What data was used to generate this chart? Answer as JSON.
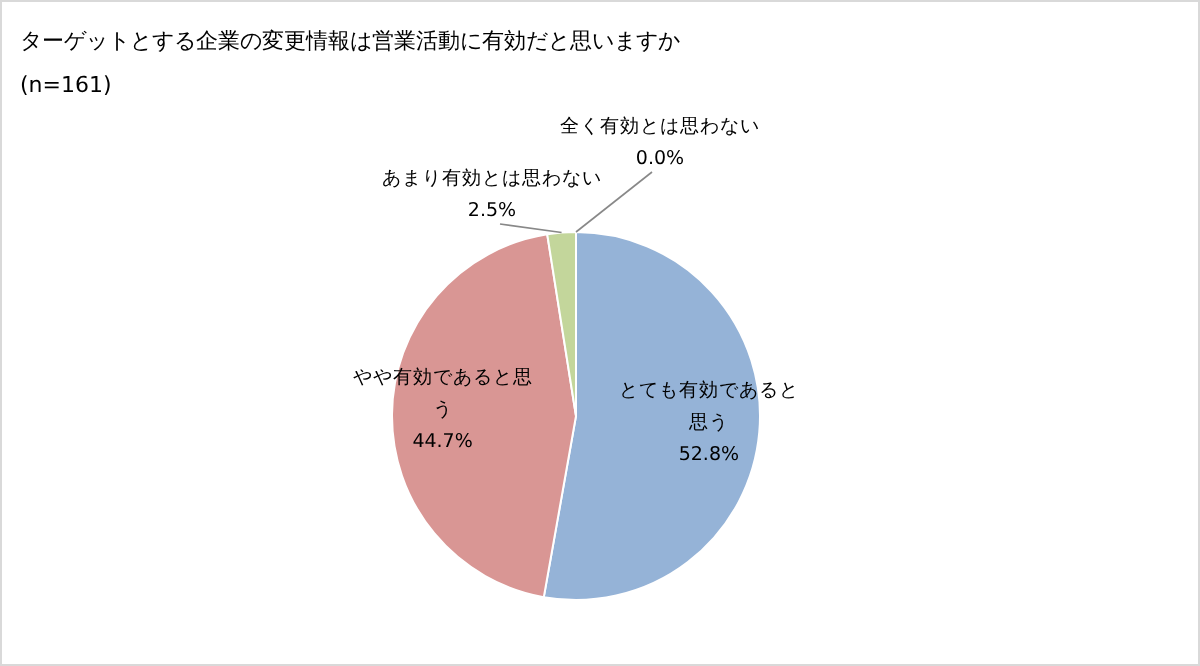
{
  "chart_data": {
    "type": "pie",
    "title": "ターゲットとする企業の変更情報は営業活動に有効だと思いますか",
    "subtitle": "(n=161)",
    "categories": [
      "とても有効であると思う",
      "やや有効であると思う",
      "あまり有効とは思わない",
      "全く有効とは思わない"
    ],
    "values": [
      52.8,
      44.7,
      2.5,
      0.0
    ],
    "value_labels": [
      "52.8%",
      "44.7%",
      "2.5%",
      "0.0%"
    ],
    "colors": [
      "#95b3d7",
      "#d99694",
      "#c3d69b",
      "#b3a2c7"
    ]
  }
}
